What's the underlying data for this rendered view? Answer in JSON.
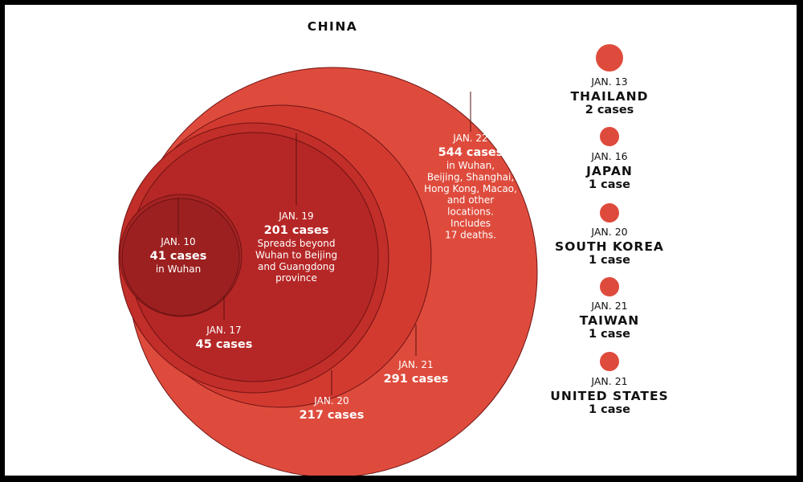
{
  "chart_data": {
    "type": "bubble",
    "title": "CHINA",
    "china_series": [
      {
        "date": "JAN. 22",
        "count": "544 cases",
        "value": 544,
        "note": [
          "in Wuhan,",
          "Beijing, Shanghai,",
          "Hong Kong, Macao,",
          "and other",
          "locations.",
          "Includes",
          "17 deaths."
        ],
        "color": "#de4b3c"
      },
      {
        "date": "JAN. 21",
        "count": "291 cases",
        "value": 291,
        "note": [],
        "color": "#d23a30"
      },
      {
        "date": "JAN. 20",
        "count": "217 cases",
        "value": 217,
        "note": [],
        "color": "#c22e29"
      },
      {
        "date": "JAN. 19",
        "count": "201 cases",
        "value": 201,
        "note": [
          "Spreads beyond",
          "Wuhan to Beijing",
          "and Guangdong",
          "province"
        ],
        "color": "#b52726"
      },
      {
        "date": "JAN. 17",
        "count": "45 cases",
        "value": 45,
        "note": [],
        "color": "#a72323"
      },
      {
        "date": "JAN. 10",
        "count": "41 cases",
        "value": 41,
        "note": [
          "in Wuhan"
        ],
        "color": "#9c2020"
      }
    ],
    "other_countries": [
      {
        "date": "JAN. 13",
        "country": "THAILAND",
        "count": "2 cases",
        "value": 2
      },
      {
        "date": "JAN. 16",
        "country": "JAPAN",
        "count": "1 case",
        "value": 1
      },
      {
        "date": "JAN. 20",
        "country": "SOUTH KOREA",
        "count": "1 case",
        "value": 1
      },
      {
        "date": "JAN. 21",
        "country": "TAIWAN",
        "count": "1 case",
        "value": 1
      },
      {
        "date": "JAN. 21",
        "country": "UNITED STATES",
        "count": "1 case",
        "value": 1
      }
    ],
    "colors": {
      "small_bubble": "#de4b3c",
      "outline": "#6e1313",
      "leader": "#5a1010"
    }
  }
}
